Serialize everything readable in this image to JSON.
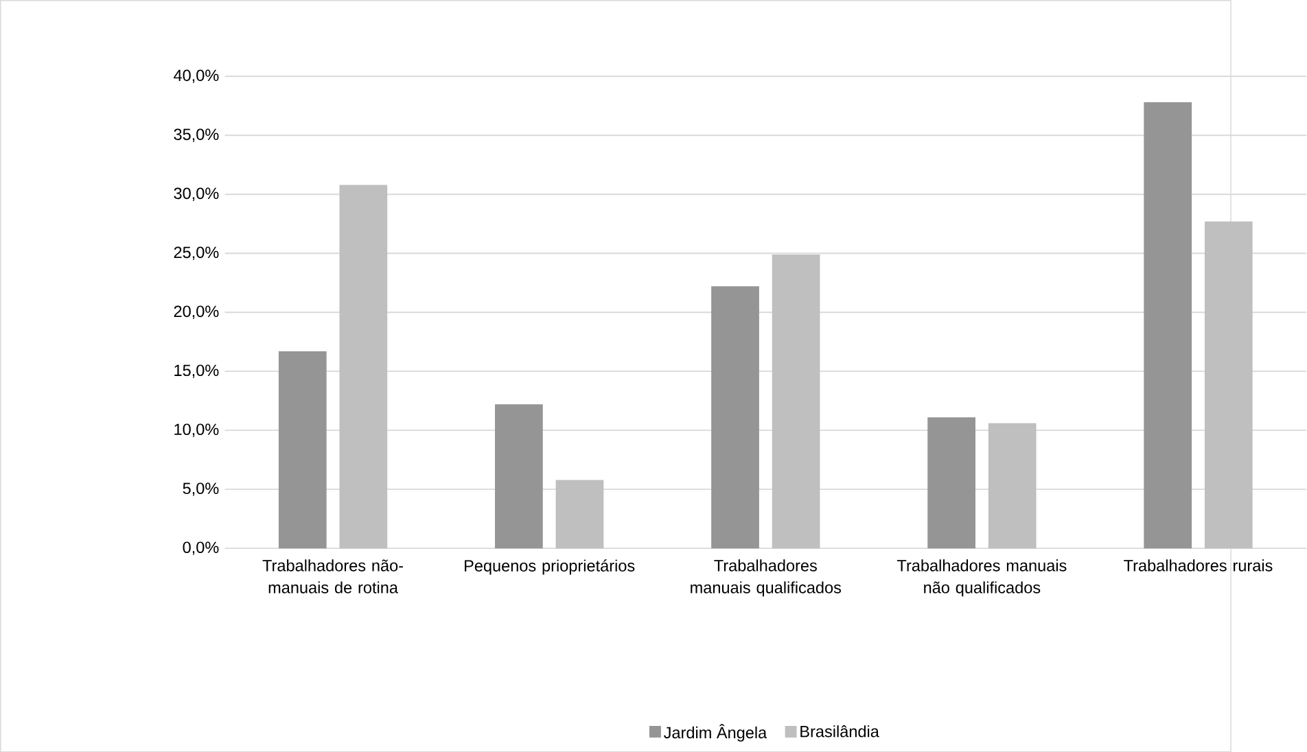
{
  "chart_data": {
    "type": "bar",
    "categories": [
      "Trabalhadores não-manuais de rotina",
      "Pequenos prioprietários",
      "Trabalhadores manuais qualificados",
      "Trabalhadores manuais não qualificados",
      "Trabalhadores rurais"
    ],
    "series": [
      {
        "name": "Jardim Ângela",
        "color": "#959595",
        "values": [
          16.7,
          12.2,
          22.2,
          11.1,
          37.8
        ]
      },
      {
        "name": "Brasilândia",
        "color": "#bfbfbf",
        "values": [
          30.8,
          5.8,
          24.9,
          10.6,
          27.7
        ]
      }
    ],
    "ylim": [
      0,
      40
    ],
    "yticks": [
      {
        "value": 0,
        "label": "0,0%"
      },
      {
        "value": 5,
        "label": "5,0%"
      },
      {
        "value": 10,
        "label": "10,0%"
      },
      {
        "value": 15,
        "label": "15,0%"
      },
      {
        "value": 20,
        "label": "20,0%"
      },
      {
        "value": 25,
        "label": "25,0%"
      },
      {
        "value": 30,
        "label": "30,0%"
      },
      {
        "value": 35,
        "label": "35,0%"
      },
      {
        "value": 40,
        "label": "40,0%"
      }
    ],
    "grid": "y",
    "legend": "bottom"
  }
}
